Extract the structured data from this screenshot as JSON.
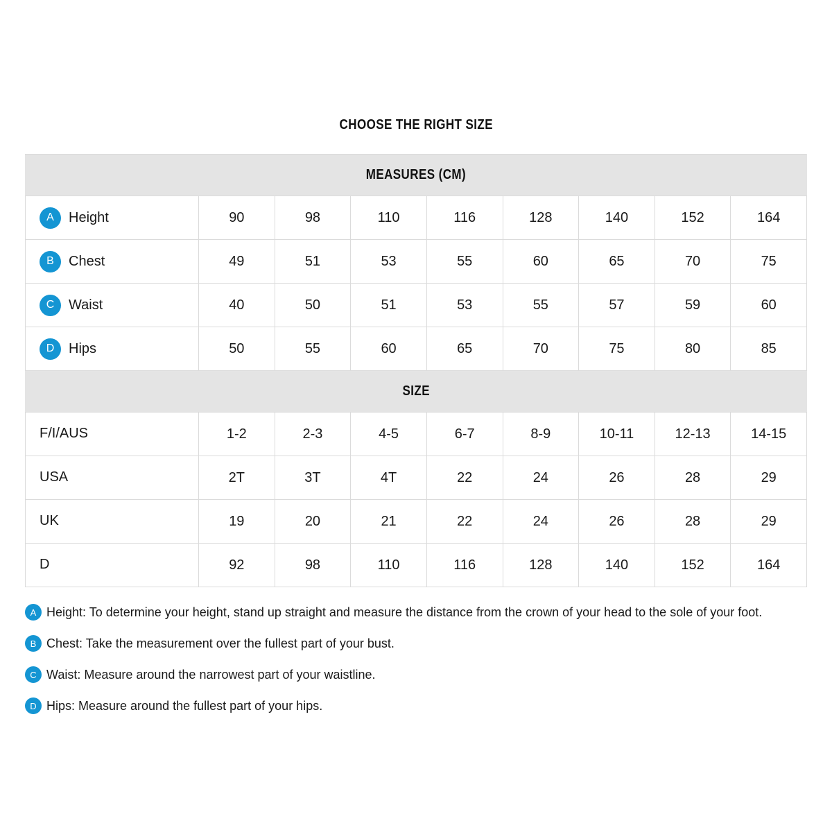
{
  "page": {
    "title": "CHOOSE THE RIGHT SIZE"
  },
  "colors": {
    "accent_blue": "#1495d3",
    "band_gray": "#e4e4e4",
    "border_gray": "#dbdbdb"
  },
  "measures": {
    "header": "MEASURES (CM)",
    "rows": [
      {
        "badge": "A",
        "label": "Height",
        "values": [
          "90",
          "98",
          "110",
          "116",
          "128",
          "140",
          "152",
          "164"
        ]
      },
      {
        "badge": "B",
        "label": "Chest",
        "values": [
          "49",
          "51",
          "53",
          "55",
          "60",
          "65",
          "70",
          "75"
        ]
      },
      {
        "badge": "C",
        "label": "Waist",
        "values": [
          "40",
          "50",
          "51",
          "53",
          "55",
          "57",
          "59",
          "60"
        ]
      },
      {
        "badge": "D",
        "label": "Hips",
        "values": [
          "50",
          "55",
          "60",
          "65",
          "70",
          "75",
          "80",
          "85"
        ]
      }
    ]
  },
  "sizes": {
    "header": "SIZE",
    "rows": [
      {
        "label": "F/I/AUS",
        "values": [
          "1-2",
          "2-3",
          "4-5",
          "6-7",
          "8-9",
          "10-11",
          "12-13",
          "14-15"
        ]
      },
      {
        "label": "USA",
        "values": [
          "2T",
          "3T",
          "4T",
          "22",
          "24",
          "26",
          "28",
          "29"
        ]
      },
      {
        "label": "UK",
        "values": [
          "19",
          "20",
          "21",
          "22",
          "24",
          "26",
          "28",
          "29"
        ]
      },
      {
        "label": "D",
        "values": [
          "92",
          "98",
          "110",
          "116",
          "128",
          "140",
          "152",
          "164"
        ]
      }
    ]
  },
  "footnotes": [
    {
      "badge": "A",
      "text": "Height: To determine your height, stand up straight and measure the distance from the crown of your head to the sole of your foot."
    },
    {
      "badge": "B",
      "text": "Chest: Take the measurement over the fullest part of your bust."
    },
    {
      "badge": "C",
      "text": "Waist: Measure around the narrowest part of your waistline."
    },
    {
      "badge": "D",
      "text": "Hips: Measure around the fullest part of your hips."
    }
  ]
}
